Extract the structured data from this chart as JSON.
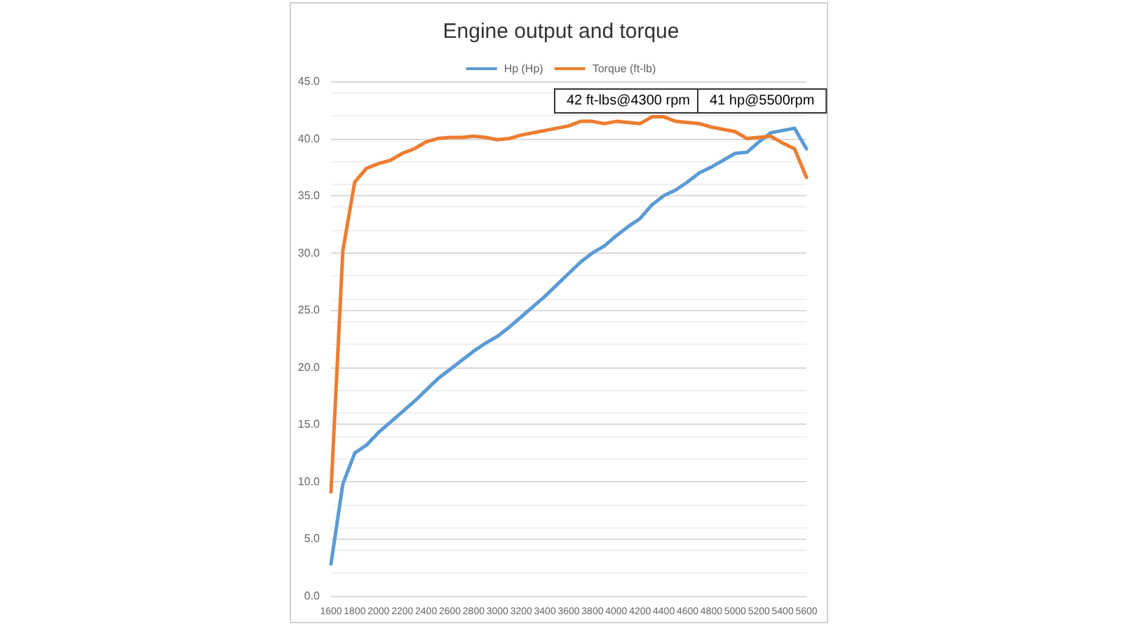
{
  "chart_data": {
    "type": "line",
    "title": "Engine output and torque",
    "categories": [
      "1600",
      null,
      "1800",
      null,
      "2000",
      null,
      "2200",
      null,
      "2400",
      null,
      "2600",
      null,
      "2800",
      null,
      "3000",
      null,
      "3200",
      null,
      "3400",
      null,
      "3600",
      null,
      "3800",
      null,
      "4000",
      null,
      "4200",
      null,
      "4400",
      null,
      "4600",
      null,
      "4800",
      null,
      "5000",
      null,
      "5200",
      null,
      "5400",
      null,
      "5600"
    ],
    "series": [
      {
        "name": "Hp (Hp)",
        "color": "#5b9bd5",
        "values": [
          2.8,
          9.8,
          12.5,
          13.2,
          14.3,
          15.2,
          16.1,
          17.0,
          18.0,
          19.0,
          19.8,
          20.6,
          21.4,
          22.1,
          22.7,
          23.5,
          24.4,
          25.3,
          26.2,
          27.2,
          28.2,
          29.2,
          30.0,
          30.6,
          31.5,
          32.3,
          33.0,
          34.2,
          35.0,
          35.5,
          36.2,
          37.0,
          37.5,
          38.1,
          38.7,
          38.8,
          39.7,
          40.5,
          40.7,
          40.9,
          39.1
        ]
      },
      {
        "name": "Torque (ft-lb)",
        "color": "#ed7d31",
        "values": [
          9.1,
          30.2,
          36.2,
          37.4,
          37.8,
          38.1,
          38.7,
          39.1,
          39.7,
          40.0,
          40.1,
          40.1,
          40.2,
          40.1,
          39.9,
          40.0,
          40.3,
          40.5,
          40.7,
          40.9,
          41.1,
          41.5,
          41.5,
          41.3,
          41.5,
          41.4,
          41.3,
          41.9,
          41.9,
          41.5,
          41.4,
          41.3,
          41.0,
          40.8,
          40.6,
          40.0,
          40.1,
          40.2,
          39.6,
          39.1,
          36.6
        ]
      }
    ],
    "ylim": [
      0,
      45
    ],
    "yticks": [
      {
        "value": 0,
        "label": "0.0"
      },
      {
        "value": 5,
        "label": "5.0"
      },
      {
        "value": 10,
        "label": "10.0"
      },
      {
        "value": 15,
        "label": "15.0"
      },
      {
        "value": 20,
        "label": "20.0"
      },
      {
        "value": 25,
        "label": "25.0"
      },
      {
        "value": 30,
        "label": "30.0"
      },
      {
        "value": 35,
        "label": "35.0"
      },
      {
        "value": 40,
        "label": "40.0"
      },
      {
        "value": 45,
        "label": "45.0"
      }
    ],
    "annotations": [
      "42 ft-lbs@4300 rpm",
      "41 hp@5500rpm"
    ],
    "grid": "y",
    "legend": "top",
    "marker": "none",
    "line_style": "solid"
  }
}
